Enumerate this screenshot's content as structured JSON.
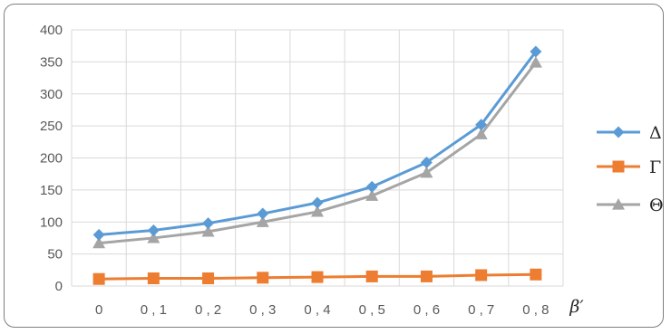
{
  "chart_data": {
    "type": "line",
    "categories": [
      "0",
      "0,1",
      "0,2",
      "0,3",
      "0,4",
      "0,5",
      "0,6",
      "0,7",
      "0,8"
    ],
    "category_display": [
      "0",
      "0 , 1",
      "0 , 2",
      "0 , 3",
      "0 , 4",
      "0 , 5",
      "0 , 6",
      "0 , 7",
      "0 , 8"
    ],
    "series": [
      {
        "name": "Δ",
        "color": "#5b9bd5",
        "marker": "diamond",
        "values": [
          80,
          87,
          98,
          113,
          130,
          155,
          193,
          252,
          366
        ]
      },
      {
        "name": "Γ",
        "color": "#ed7d31",
        "marker": "square",
        "values": [
          11,
          12,
          12,
          13,
          14,
          15,
          15,
          17,
          18
        ]
      },
      {
        "name": "Θ",
        "color": "#a5a5a5",
        "marker": "triangle",
        "values": [
          67,
          75,
          85,
          100,
          116,
          141,
          177,
          237,
          349
        ]
      }
    ],
    "xlabel": "β′",
    "ylabel": "",
    "ylim": [
      0,
      400
    ],
    "yticks": [
      0,
      50,
      100,
      150,
      200,
      250,
      300,
      350,
      400
    ],
    "grid": true,
    "legend_position": "right"
  }
}
